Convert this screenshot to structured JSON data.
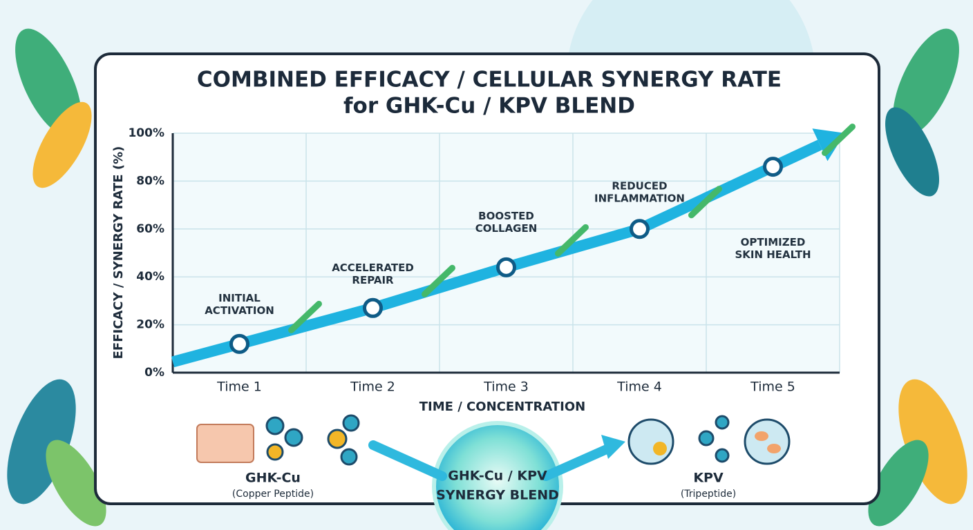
{
  "chart_data": {
    "type": "line",
    "title": [
      "COMBINED EFFICACY / CELLULAR SYNERGY RATE",
      "for GHK-Cu / KPV BLEND"
    ],
    "xlabel": "TIME / CONCENTRATION",
    "ylabel": "EFFICACY / SYNERGY RATE (%)",
    "categories": [
      "Time 1",
      "Time 2",
      "Time 3",
      "Time 4",
      "Time 5"
    ],
    "values": [
      12,
      27,
      44,
      60,
      86
    ],
    "color": "#1fb3e0",
    "ylim": [
      0,
      100
    ],
    "yticks": [
      {
        "value": 0,
        "label": "0%"
      },
      {
        "value": 20,
        "label": "20%"
      },
      {
        "value": 40,
        "label": "40%"
      },
      {
        "value": 60,
        "label": "60%"
      },
      {
        "value": 80,
        "label": "80%"
      },
      {
        "value": 100,
        "label": "100%"
      }
    ],
    "grid": true,
    "annotations": [
      [
        "INITIAL",
        "ACTIVATION"
      ],
      [
        "ACCELERATED",
        "REPAIR"
      ],
      [
        "BOOSTED",
        "COLLAGEN"
      ],
      [
        "REDUCED",
        "INFLAMMATION"
      ],
      [
        "OPTIMIZED",
        "SKIN HEALTH"
      ]
    ]
  },
  "components": [
    {
      "name": "GHK-Cu",
      "subtitle": "(Copper Peptide)"
    },
    {
      "name": [
        "GHK-Cu / KPV",
        "SYNERGY BLEND"
      ]
    },
    {
      "name": "KPV",
      "subtitle": "(Tripeptide)"
    }
  ]
}
